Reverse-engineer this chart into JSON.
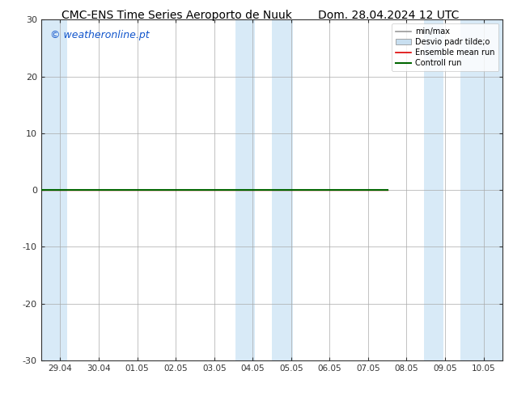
{
  "title_left": "CMC-ENS Time Series Aeroporto de Nuuk",
  "title_right": "Dom. 28.04.2024 12 UTC",
  "watermark": "© weatheronline.pt",
  "ylim": [
    -30,
    30
  ],
  "yticks": [
    -30,
    -20,
    -10,
    0,
    10,
    20,
    30
  ],
  "xtick_labels": [
    "29.04",
    "30.04",
    "01.05",
    "02.05",
    "03.05",
    "04.05",
    "05.05",
    "06.05",
    "07.05",
    "08.05",
    "09.05",
    "10.05"
  ],
  "xtick_positions": [
    0,
    1,
    2,
    3,
    4,
    5,
    6,
    7,
    8,
    9,
    10,
    11
  ],
  "bg_color": "#ffffff",
  "plot_bg_color": "#ffffff",
  "shaded_bands": [
    {
      "xmin": -0.5,
      "xmax": 0.18,
      "color": "#d8eaf7"
    },
    {
      "xmin": 4.55,
      "xmax": 5.05,
      "color": "#d8eaf7"
    },
    {
      "xmin": 5.5,
      "xmax": 6.05,
      "color": "#d8eaf7"
    },
    {
      "xmin": 9.45,
      "xmax": 9.95,
      "color": "#d8eaf7"
    },
    {
      "xmin": 10.4,
      "xmax": 11.5,
      "color": "#d8eaf7"
    }
  ],
  "legend_entries": [
    {
      "label": "min/max",
      "color": "#999999",
      "lw": 1.2,
      "type": "line"
    },
    {
      "label": "Desvio padr tilde;o",
      "color": "#c8dff0",
      "lw": 8,
      "type": "patch"
    },
    {
      "label": "Ensemble mean run",
      "color": "#dd0000",
      "lw": 1.2,
      "type": "line"
    },
    {
      "label": "Controll run",
      "color": "#006600",
      "lw": 1.5,
      "type": "line"
    }
  ],
  "control_run_y": 0,
  "line_color_control": "#006600",
  "line_color_ensemble": "#cc0000",
  "line_x_start": -0.5,
  "line_x_end": 8.5,
  "tick_color": "#333333",
  "spine_color": "#333333",
  "title_fontsize": 10,
  "watermark_color": "#1155cc",
  "watermark_fontsize": 9
}
